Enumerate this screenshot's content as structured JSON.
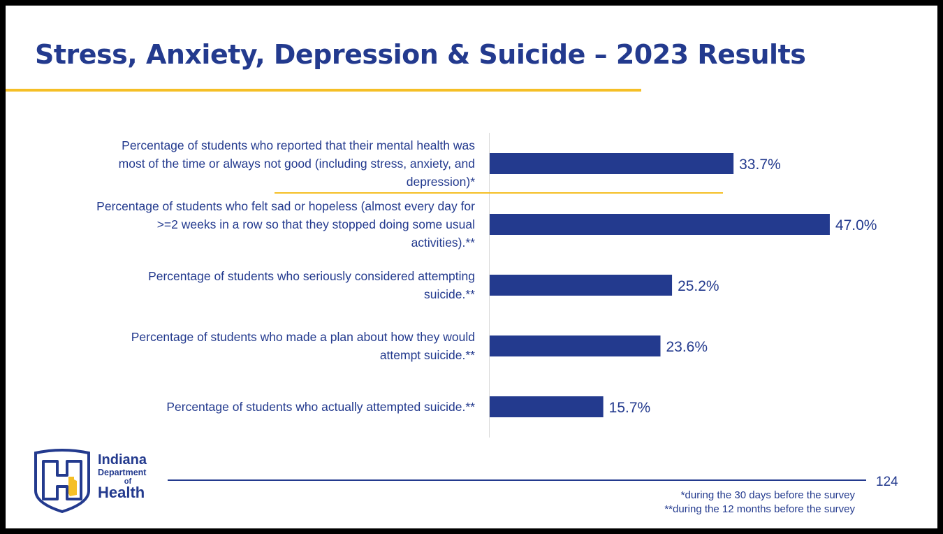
{
  "slide": {
    "title": "Stress, Anxiety, Depression & Suicide – 2023 Results",
    "page_number": "124",
    "footnotes": [
      "*during the 30 days before the survey",
      "**during the 12 months before the survey"
    ],
    "logo": {
      "line1": "Indiana",
      "line2": "Department",
      "line3": "of",
      "line4": "Health"
    }
  },
  "colors": {
    "navy": "#233a8e",
    "gold": "#f5bf26"
  },
  "chart_data": {
    "type": "bar",
    "orientation": "horizontal",
    "categories": [
      [
        "Percentage of students who reported that their mental health was",
        "most of the time or always not good (including stress, anxiety, and",
        "depression)*"
      ],
      [
        "Percentage of students who felt sad or hopeless (almost every day for",
        ">=2 weeks in a row so that they stopped doing some usual",
        "activities).**"
      ],
      [
        "Percentage of students who seriously considered attempting",
        "suicide.**"
      ],
      [
        "Percentage of students who made a plan about how they would",
        "attempt suicide.**"
      ],
      [
        "Percentage of students who actually attempted suicide.**"
      ]
    ],
    "values": [
      33.7,
      47.0,
      25.2,
      23.6,
      15.7
    ],
    "value_labels": [
      "33.7%",
      "47.0%",
      "25.2%",
      "23.6%",
      "15.7%"
    ],
    "xlim": [
      0,
      50
    ],
    "grid": false,
    "legend": "none"
  }
}
